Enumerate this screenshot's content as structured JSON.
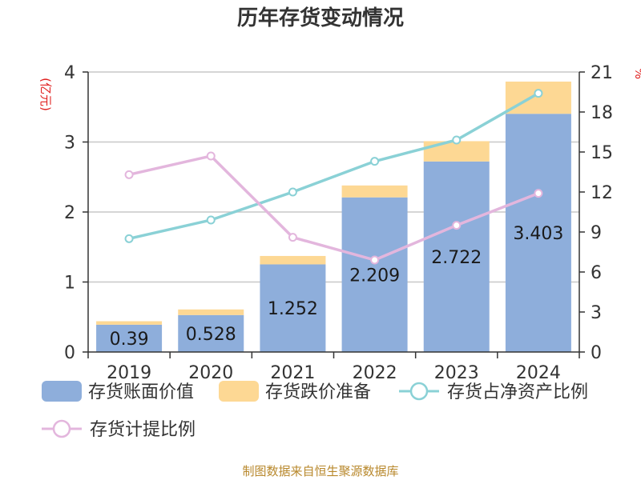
{
  "title": "历年存货变动情况",
  "source": "制图数据来自恒生聚源数据库",
  "chart_data": {
    "type": "bar",
    "stacked": true,
    "categories": [
      "2019",
      "2020",
      "2021",
      "2022",
      "2023",
      "2024"
    ],
    "left_axis": {
      "unit": "(亿元)",
      "ylim": [
        0,
        4
      ],
      "ticks": [
        "0",
        "1",
        "2",
        "3",
        "4"
      ]
    },
    "right_axis": {
      "unit": "%",
      "ylim": [
        0,
        21
      ],
      "ticks": [
        "0",
        "3",
        "6",
        "9",
        "12",
        "15",
        "18",
        "21"
      ]
    },
    "grid": true,
    "legend_position": "bottom",
    "series": [
      {
        "name": "存货账面价值",
        "type": "bar",
        "axis": "left",
        "color": "#8eaedb",
        "values": [
          0.39,
          0.528,
          1.252,
          2.209,
          2.722,
          3.403
        ],
        "labels": [
          "0.39",
          "0.528",
          "1.252",
          "2.209",
          "2.722",
          "3.403"
        ]
      },
      {
        "name": "存货跌价准备",
        "type": "bar",
        "axis": "left",
        "color": "#fdd894",
        "values": [
          0.05,
          0.08,
          0.12,
          0.17,
          0.29,
          0.46
        ]
      },
      {
        "name": "存货占净资产比例",
        "type": "line",
        "axis": "right",
        "color": "#8ad1d6",
        "values": [
          8.5,
          9.9,
          12.0,
          14.3,
          15.9,
          19.4
        ]
      },
      {
        "name": "存货计提比例",
        "type": "line",
        "axis": "right",
        "color": "#e3b6dd",
        "values": [
          13.3,
          14.7,
          8.6,
          6.9,
          9.5,
          11.9
        ]
      }
    ]
  }
}
